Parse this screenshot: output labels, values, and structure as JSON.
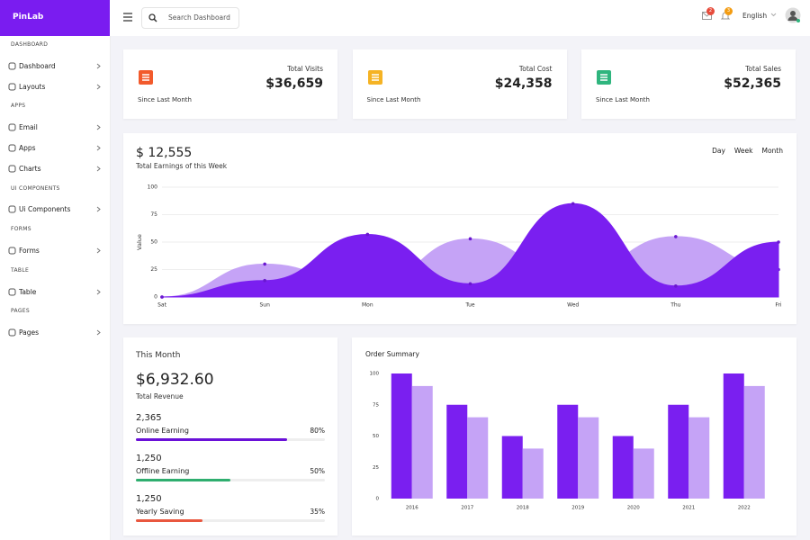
{
  "sidebar": {
    "brand": "PinLab",
    "sections": [
      {
        "title": "DASHBOARD",
        "items": [
          "Dashboard",
          "Layouts"
        ]
      },
      {
        "title": "APPS",
        "items": [
          "Email",
          "Apps",
          "Charts"
        ]
      },
      {
        "title": "UI COMPONENTS",
        "items": [
          "Ui Components"
        ]
      },
      {
        "title": "FORMS",
        "items": [
          "Forms"
        ]
      },
      {
        "title": "TABLE",
        "items": [
          "Table"
        ]
      },
      {
        "title": "PAGES",
        "items": [
          "Pages"
        ]
      }
    ]
  },
  "header": {
    "search_placeholder": "Search Dashboard",
    "mail_badge": "2",
    "notification_badge": "3",
    "language": "English"
  },
  "stats": [
    {
      "title": "Total Visits",
      "value": "$36,659",
      "note": "Since Last Month",
      "color": "#f25a2c"
    },
    {
      "title": "Total Cost",
      "value": "$24,358",
      "note": "Since Last Month",
      "color": "#f5b324"
    },
    {
      "title": "Total Sales",
      "value": "$52,365",
      "note": "Since Last Month",
      "color": "#2fb57e"
    }
  ],
  "earnings": {
    "amount": "$ 12,555",
    "subtitle": "Total Earnings of this Week",
    "tabs": [
      "Day",
      "Week",
      "Month"
    ]
  },
  "this_month": {
    "title": "This Month",
    "amount": "$6,932.60",
    "subtitle": "Total Revenue",
    "items": [
      {
        "amount": "2,365",
        "label": "Online Earning",
        "percent": {
          "value": 80,
          "label": "80%"
        },
        "color": "#6a11d8"
      },
      {
        "amount": "1,250",
        "label": "Offline Earning",
        "percent": {
          "value": 50,
          "label": "50%"
        },
        "color": "#2fae6f"
      },
      {
        "amount": "1,250",
        "label": "Yearly Saving",
        "percent": {
          "value": 35,
          "label": "35%"
        },
        "color": "#e9573f"
      }
    ]
  },
  "chart_data": [
    {
      "type": "area",
      "categories": [
        "Sat",
        "Sun",
        "Mon",
        "Tue",
        "Wed",
        "Thu",
        "Fri"
      ],
      "y_label": "Value",
      "ylim": [
        0,
        100
      ],
      "yticks": [
        0,
        25,
        50,
        75,
        100
      ],
      "grid": true,
      "series": [
        {
          "color": "#c5a3f6",
          "values": [
            0,
            30,
            10,
            53,
            20,
            55,
            25
          ]
        },
        {
          "color": "#7a1ff0",
          "values": [
            0,
            15,
            57,
            12,
            85,
            10,
            50
          ]
        }
      ]
    },
    {
      "type": "bar",
      "title": "Order Summary",
      "categories": [
        "2016",
        "2017",
        "2018",
        "2019",
        "2020",
        "2021",
        "2022"
      ],
      "ylim": [
        0,
        100
      ],
      "yticks": [
        0,
        25,
        50,
        75,
        100
      ],
      "grid": false,
      "series": [
        {
          "color": "#7a1ff0",
          "values": [
            100,
            75,
            50,
            75,
            50,
            75,
            100
          ]
        },
        {
          "color": "#c5a3f6",
          "values": [
            90,
            65,
            40,
            65,
            40,
            65,
            90
          ]
        }
      ]
    }
  ]
}
